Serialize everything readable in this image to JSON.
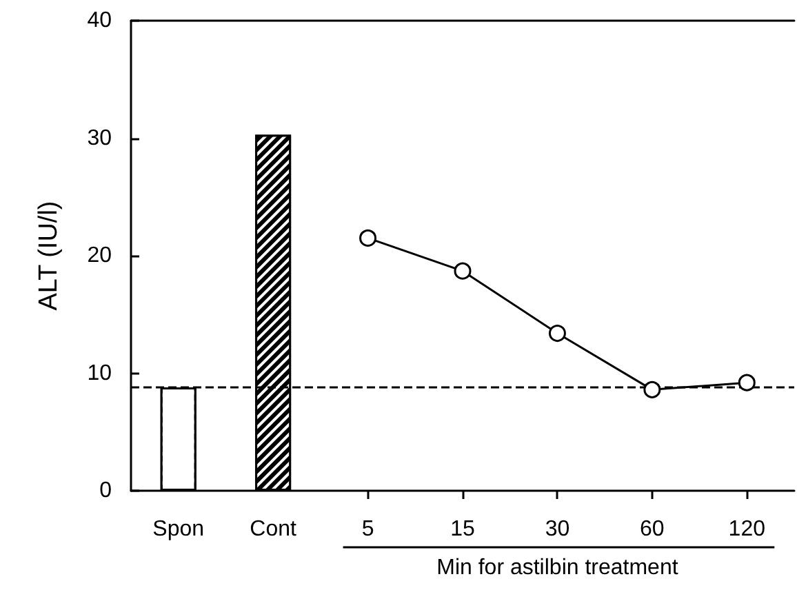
{
  "chart_data": {
    "type": "bar",
    "ylabel": "ALT (IU/l)",
    "xlabel": "Min for astilbin treatment",
    "categories": [
      "Spon",
      "Cont",
      "5",
      "15",
      "30",
      "60",
      "120"
    ],
    "series": [
      {
        "colors": [
          "#ffffff",
          "#000000",
          null,
          null,
          null,
          null,
          null
        ],
        "values": [
          8.8,
          30.3,
          null,
          null,
          null,
          null,
          null
        ]
      },
      {
        "type": "line",
        "color": "#000000",
        "marker": "circle",
        "line_style": "solid",
        "values": [
          null,
          null,
          21.5,
          18.7,
          13.4,
          8.6,
          9.2
        ]
      }
    ],
    "ylim": [
      0,
      40
    ],
    "yticks": [
      0,
      10,
      20,
      30,
      40
    ],
    "grid": false,
    "ref_lines": [
      {
        "axis": "y",
        "value": 8.8,
        "line_style": "dashed",
        "color": "#000000"
      }
    ]
  }
}
